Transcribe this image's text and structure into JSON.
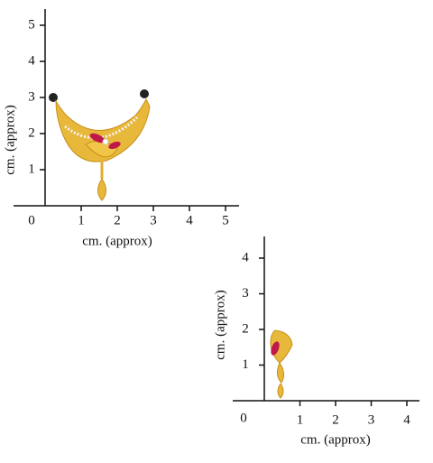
{
  "panels": [
    {
      "y_ticks": [
        "1",
        "2",
        "3",
        "4",
        "5"
      ],
      "x_ticks": [
        "1",
        "2",
        "3",
        "4",
        "5"
      ],
      "origin": "0",
      "y_label": "cm. (approx)",
      "x_label": "cm. (approx)"
    },
    {
      "y_ticks": [
        "1",
        "2",
        "3",
        "4"
      ],
      "x_ticks": [
        "1",
        "2",
        "3",
        "4"
      ],
      "origin": "0",
      "y_label": "cm. (approx)",
      "x_label": "cm. (approx)"
    }
  ]
}
